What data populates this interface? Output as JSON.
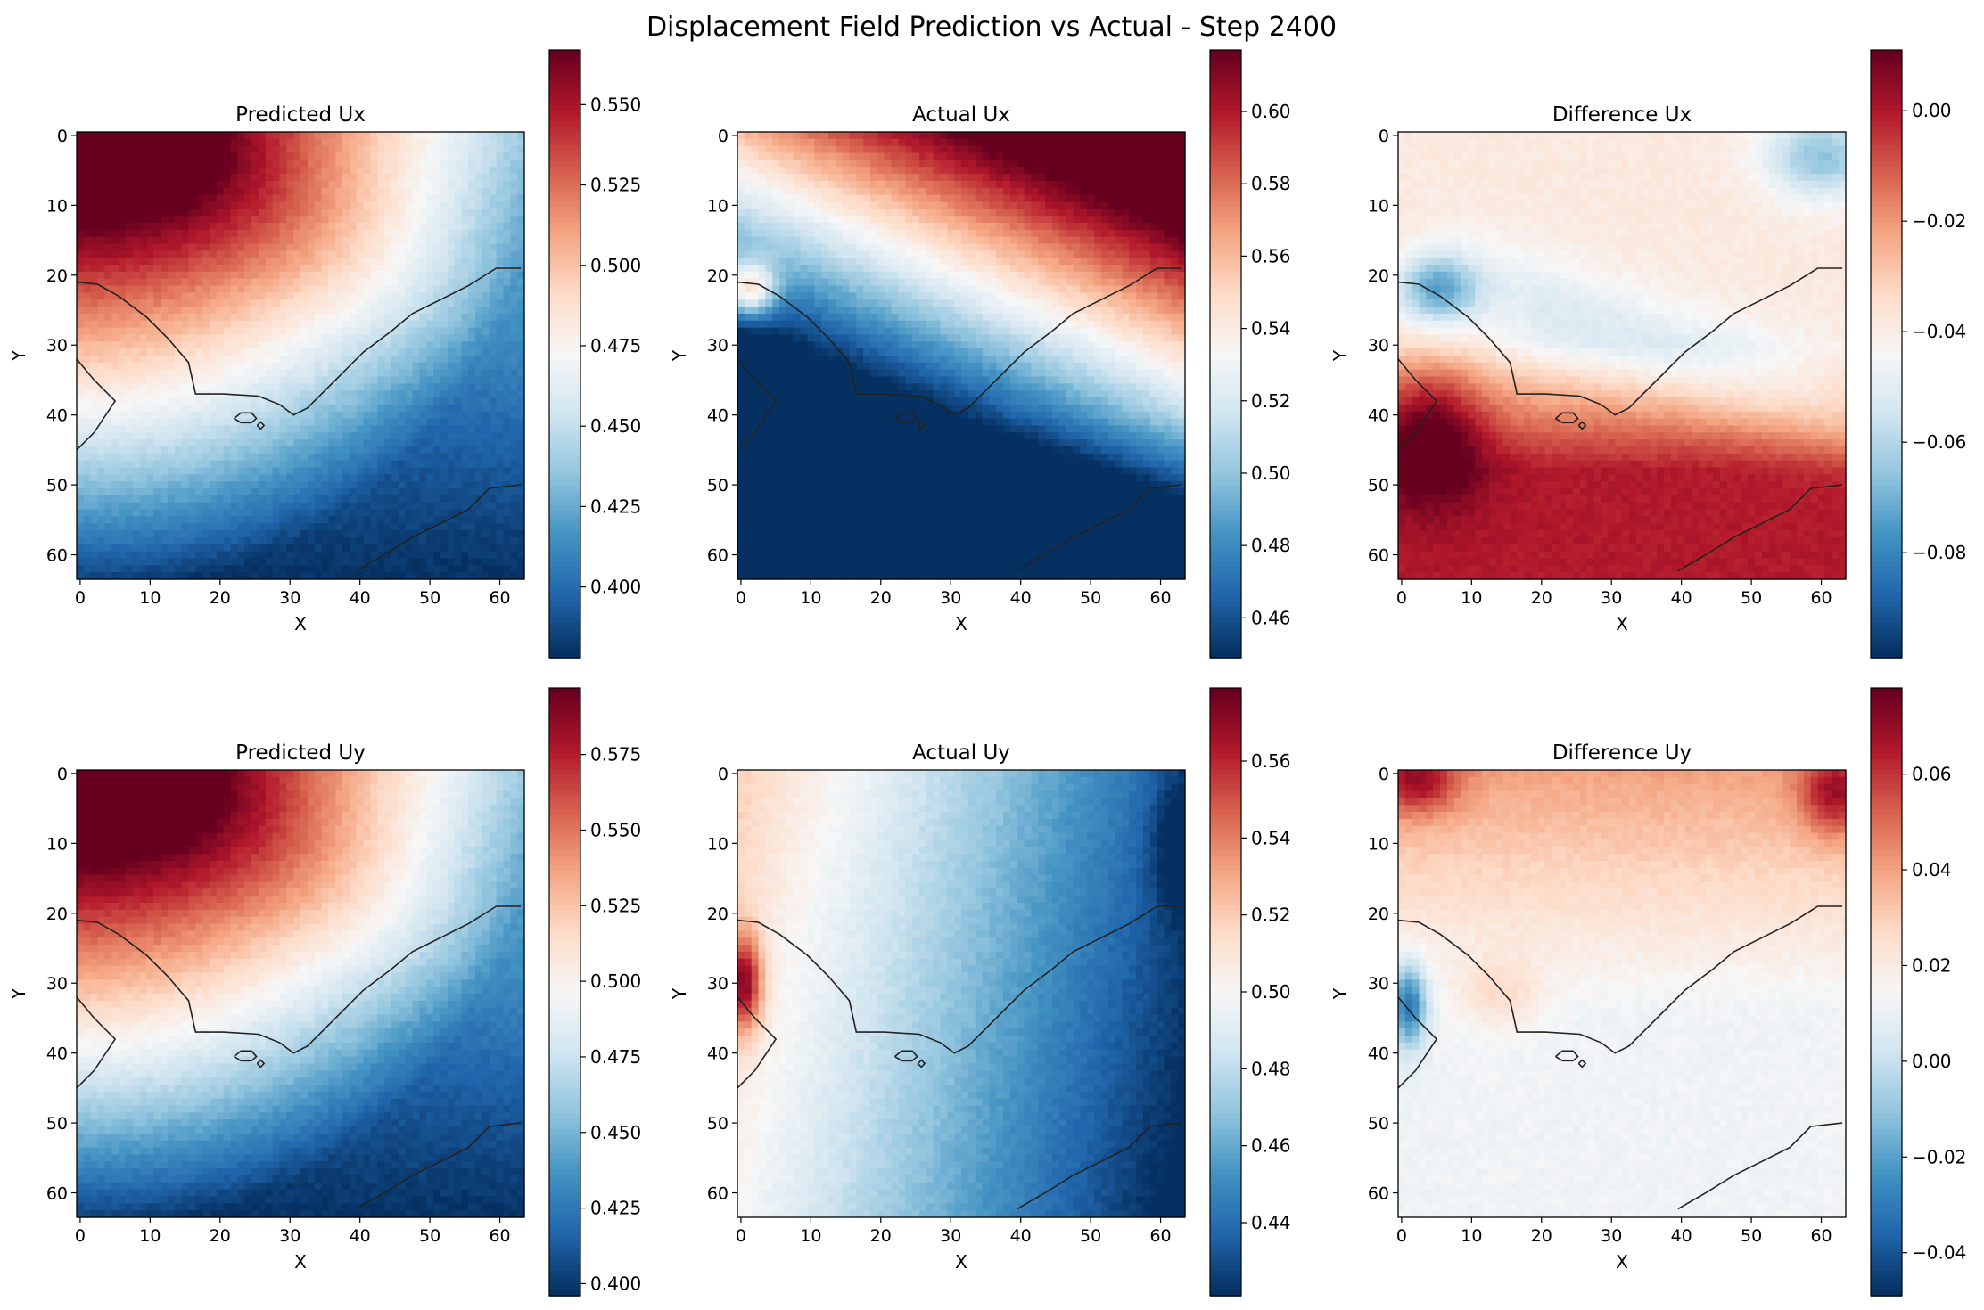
{
  "title": "Displacement Field Prediction vs Actual - Step 2400",
  "chart_data": [
    {
      "type": "heatmap",
      "title": "Predicted Ux",
      "xlabel": "X",
      "ylabel": "Y",
      "xticks": [
        "0",
        "10",
        "20",
        "30",
        "40",
        "50",
        "60"
      ],
      "yticks": [
        "0",
        "10",
        "20",
        "30",
        "40",
        "50",
        "60"
      ],
      "grid_size": [
        64,
        64
      ],
      "colormap": "RdBu_r",
      "colorbar": {
        "vmin": 0.378,
        "vmax": 0.567,
        "ticks": [
          "0.400",
          "0.425",
          "0.450",
          "0.475",
          "0.500",
          "0.525",
          "0.550"
        ]
      },
      "field": "corner-high",
      "pattern_scale": 1.0
    },
    {
      "type": "heatmap",
      "title": "Actual Ux",
      "xlabel": "X",
      "ylabel": "Y",
      "xticks": [
        "0",
        "10",
        "20",
        "30",
        "40",
        "50",
        "60"
      ],
      "yticks": [
        "0",
        "10",
        "20",
        "30",
        "40",
        "50",
        "60"
      ],
      "grid_size": [
        64,
        64
      ],
      "colormap": "RdBu_r",
      "colorbar": {
        "vmin": 0.449,
        "vmax": 0.617,
        "ticks": [
          "0.46",
          "0.48",
          "0.50",
          "0.52",
          "0.54",
          "0.56",
          "0.58",
          "0.60"
        ]
      },
      "field": "actual-ux",
      "pattern_scale": 1.0
    },
    {
      "type": "heatmap",
      "title": "Difference Ux",
      "xlabel": "X",
      "ylabel": "Y",
      "xticks": [
        "0",
        "10",
        "20",
        "30",
        "40",
        "50",
        "60"
      ],
      "yticks": [
        "0",
        "10",
        "20",
        "30",
        "40",
        "50",
        "60"
      ],
      "grid_size": [
        64,
        64
      ],
      "colormap": "RdBu_r",
      "colorbar": {
        "vmin": -0.099,
        "vmax": 0.011,
        "ticks": [
          "0.00",
          "−0.02",
          "−0.04",
          "−0.06",
          "−0.08"
        ]
      },
      "field": "diff-ux",
      "pattern_scale": 1.0
    },
    {
      "type": "heatmap",
      "title": "Predicted Uy",
      "xlabel": "X",
      "ylabel": "Y",
      "xticks": [
        "0",
        "10",
        "20",
        "30",
        "40",
        "50",
        "60"
      ],
      "yticks": [
        "0",
        "10",
        "20",
        "30",
        "40",
        "50",
        "60"
      ],
      "grid_size": [
        64,
        64
      ],
      "colormap": "RdBu_r",
      "colorbar": {
        "vmin": 0.396,
        "vmax": 0.597,
        "ticks": [
          "0.400",
          "0.425",
          "0.450",
          "0.475",
          "0.500",
          "0.525",
          "0.550",
          "0.575"
        ]
      },
      "field": "corner-high",
      "pattern_scale": 1.0
    },
    {
      "type": "heatmap",
      "title": "Actual Uy",
      "xlabel": "X",
      "ylabel": "Y",
      "xticks": [
        "0",
        "10",
        "20",
        "30",
        "40",
        "50",
        "60"
      ],
      "yticks": [
        "0",
        "10",
        "20",
        "30",
        "40",
        "50",
        "60"
      ],
      "grid_size": [
        64,
        64
      ],
      "colormap": "RdBu_r",
      "colorbar": {
        "vmin": 0.421,
        "vmax": 0.579,
        "ticks": [
          "0.44",
          "0.46",
          "0.48",
          "0.50",
          "0.52",
          "0.54",
          "0.56"
        ]
      },
      "field": "actual-uy",
      "pattern_scale": 1.0
    },
    {
      "type": "heatmap",
      "title": "Difference Uy",
      "xlabel": "X",
      "ylabel": "Y",
      "xticks": [
        "0",
        "10",
        "20",
        "30",
        "40",
        "50",
        "60"
      ],
      "yticks": [
        "0",
        "10",
        "20",
        "30",
        "40",
        "50",
        "60"
      ],
      "grid_size": [
        64,
        64
      ],
      "colormap": "RdBu_r",
      "colorbar": {
        "vmin": -0.049,
        "vmax": 0.078,
        "ticks": [
          "0.06",
          "0.04",
          "0.02",
          "0.00",
          "−0.02",
          "−0.04"
        ]
      },
      "field": "diff-uy",
      "pattern_scale": 1.0
    }
  ]
}
